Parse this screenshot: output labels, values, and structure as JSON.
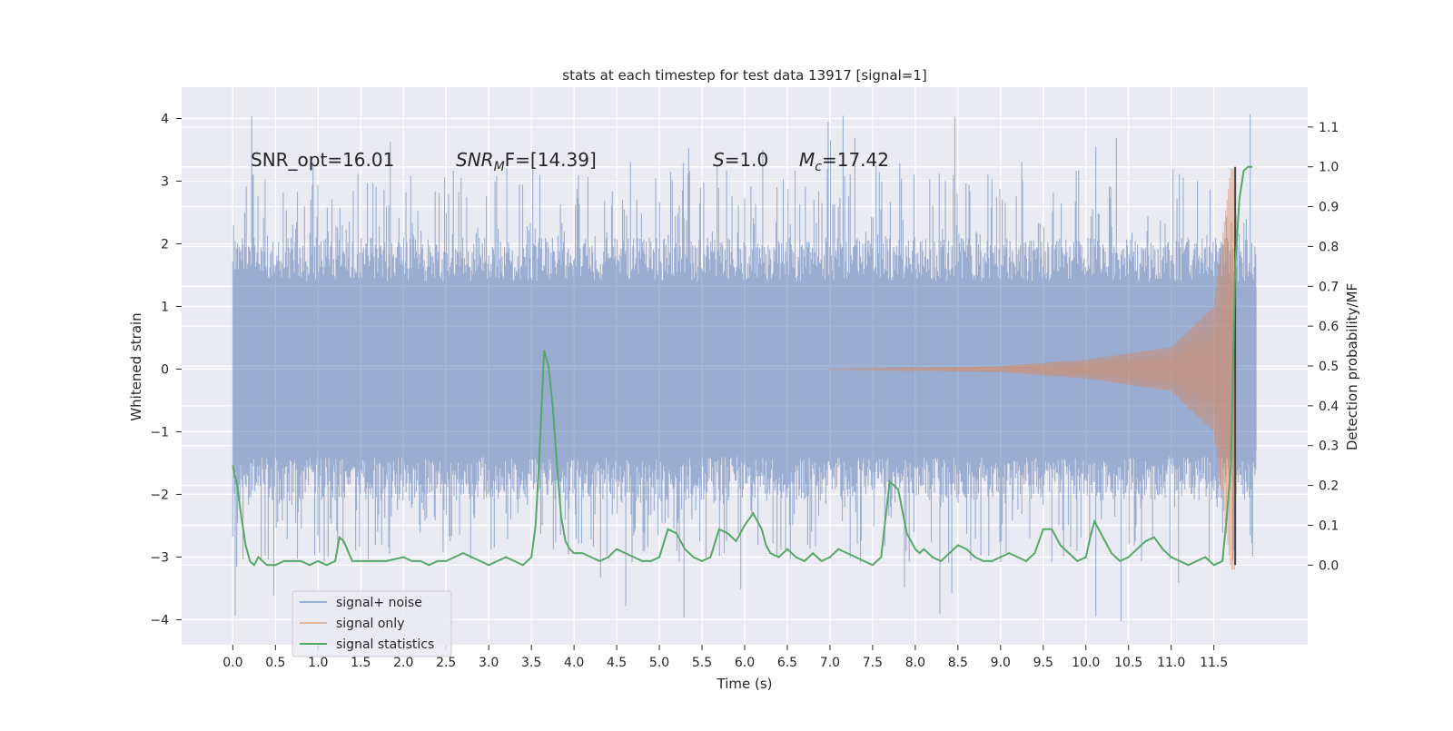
{
  "chart_data": {
    "type": "line",
    "title": "stats at each timestep for test data 13917 [signal=1]",
    "xlabel": "Time (s)",
    "ylabel": "Whitened strain",
    "ylabel_right": "Detection probability/MF",
    "xlim": [
      -0.6,
      12.6
    ],
    "ylim": [
      -4.4,
      4.5
    ],
    "ylim_right": [
      -0.2,
      1.2
    ],
    "x_ticks": [
      0.0,
      0.5,
      1.0,
      1.5,
      2.0,
      2.5,
      3.0,
      3.5,
      4.0,
      4.5,
      5.0,
      5.5,
      6.0,
      6.5,
      7.0,
      7.5,
      8.0,
      8.5,
      9.0,
      9.5,
      10.0,
      10.5,
      11.0,
      11.5
    ],
    "x_tick_labels": [
      "0.0",
      "0.5",
      "1.0",
      "1.5",
      "2.0",
      "2.5",
      "3.0",
      "3.5",
      "4.0",
      "4.5",
      "5.0",
      "5.5",
      "6.0",
      "6.5",
      "7.0",
      "7.5",
      "8.0",
      "8.5",
      "9.0",
      "9.5",
      "10.0",
      "10.5",
      "11.0",
      "11.5"
    ],
    "y_ticks": [
      -4,
      -3,
      -2,
      -1,
      0,
      1,
      2,
      3,
      4
    ],
    "y_tick_labels": [
      "−4",
      "−3",
      "−2",
      "−1",
      "0",
      "1",
      "2",
      "3",
      "4"
    ],
    "y_right_ticks": [
      0.0,
      0.1,
      0.2,
      0.3,
      0.4,
      0.5,
      0.6,
      0.7,
      0.8,
      0.9,
      1.0,
      1.1
    ],
    "y_right_tick_labels": [
      "0.0",
      "0.1",
      "0.2",
      "0.3",
      "0.4",
      "0.5",
      "0.6",
      "0.7",
      "0.8",
      "0.9",
      "1.0",
      "1.1"
    ],
    "grid": true,
    "legend_position": "lower-left",
    "annotations": [
      {
        "label": "SNR_opt=16.01",
        "x": 0.2,
        "y": 3.3
      },
      {
        "label_main": "SNR",
        "label_sub": "M",
        "label_rest": "F=[14.39]",
        "x": 2.6,
        "y": 3.3
      },
      {
        "label_main": "S",
        "label_rest": "=1.0",
        "x": 5.6,
        "y": 3.3
      },
      {
        "label_main": "M",
        "label_sub": "c",
        "label_rest": "=17.42",
        "x": 6.6,
        "y": 3.3
      }
    ],
    "marker_line_x": 11.75,
    "series": [
      {
        "name": "signal+ noise",
        "color": "#4c72b0",
        "axis": "left",
        "x_range": [
          0.0,
          12.0
        ],
        "envelope": {
          "dense_abs": 1.3,
          "spike_abs_max": 4.1
        }
      },
      {
        "name": "signal only",
        "color": "#dd8452",
        "axis": "left",
        "x_range": [
          7.0,
          11.75
        ],
        "amplitude": [
          [
            7.0,
            0.0
          ],
          [
            8.0,
            0.02
          ],
          [
            9.0,
            0.05
          ],
          [
            10.0,
            0.15
          ],
          [
            11.0,
            0.35
          ],
          [
            11.5,
            1.0
          ],
          [
            11.7,
            3.2
          ]
        ]
      },
      {
        "name": "signal statistics",
        "color": "#55a868",
        "axis": "right",
        "x": [
          0.0,
          0.05,
          0.1,
          0.15,
          0.2,
          0.25,
          0.3,
          0.4,
          0.5,
          0.6,
          0.7,
          0.8,
          0.9,
          1.0,
          1.1,
          1.2,
          1.25,
          1.3,
          1.4,
          1.5,
          1.6,
          1.8,
          2.0,
          2.1,
          2.2,
          2.3,
          2.4,
          2.5,
          2.6,
          2.7,
          2.8,
          2.9,
          3.0,
          3.1,
          3.2,
          3.3,
          3.4,
          3.5,
          3.55,
          3.6,
          3.65,
          3.7,
          3.75,
          3.8,
          3.85,
          3.9,
          3.95,
          4.0,
          4.05,
          4.1,
          4.2,
          4.3,
          4.4,
          4.5,
          4.6,
          4.7,
          4.8,
          4.9,
          5.0,
          5.1,
          5.2,
          5.3,
          5.4,
          5.5,
          5.6,
          5.7,
          5.8,
          5.9,
          6.0,
          6.1,
          6.2,
          6.25,
          6.3,
          6.4,
          6.5,
          6.6,
          6.7,
          6.8,
          6.9,
          7.0,
          7.1,
          7.2,
          7.3,
          7.4,
          7.5,
          7.6,
          7.7,
          7.8,
          7.9,
          8.0,
          8.05,
          8.1,
          8.2,
          8.3,
          8.4,
          8.5,
          8.6,
          8.7,
          8.8,
          8.9,
          9.0,
          9.1,
          9.2,
          9.3,
          9.4,
          9.5,
          9.6,
          9.7,
          9.8,
          9.9,
          10.0,
          10.05,
          10.1,
          10.2,
          10.3,
          10.35,
          10.4,
          10.5,
          10.6,
          10.7,
          10.8,
          10.9,
          11.0,
          11.1,
          11.2,
          11.3,
          11.4,
          11.5,
          11.6,
          11.65,
          11.7,
          11.72,
          11.75,
          11.8,
          11.85,
          11.9,
          11.95
        ],
        "values": [
          0.25,
          0.2,
          0.12,
          0.05,
          0.01,
          0.0,
          0.02,
          0.0,
          0.0,
          0.01,
          0.01,
          0.01,
          0.0,
          0.01,
          0.0,
          0.01,
          0.07,
          0.06,
          0.01,
          0.01,
          0.01,
          0.01,
          0.02,
          0.01,
          0.01,
          0.0,
          0.01,
          0.01,
          0.02,
          0.03,
          0.02,
          0.01,
          0.0,
          0.01,
          0.02,
          0.01,
          0.0,
          0.02,
          0.1,
          0.3,
          0.54,
          0.5,
          0.4,
          0.25,
          0.12,
          0.06,
          0.04,
          0.03,
          0.03,
          0.03,
          0.02,
          0.01,
          0.02,
          0.04,
          0.03,
          0.02,
          0.01,
          0.01,
          0.02,
          0.09,
          0.08,
          0.04,
          0.02,
          0.01,
          0.02,
          0.09,
          0.08,
          0.06,
          0.1,
          0.13,
          0.09,
          0.05,
          0.03,
          0.02,
          0.04,
          0.02,
          0.01,
          0.03,
          0.01,
          0.02,
          0.04,
          0.03,
          0.02,
          0.01,
          0.0,
          0.02,
          0.21,
          0.19,
          0.08,
          0.04,
          0.03,
          0.04,
          0.02,
          0.01,
          0.03,
          0.05,
          0.04,
          0.02,
          0.01,
          0.01,
          0.02,
          0.03,
          0.02,
          0.01,
          0.03,
          0.09,
          0.09,
          0.05,
          0.03,
          0.01,
          0.02,
          0.07,
          0.11,
          0.07,
          0.03,
          0.02,
          0.01,
          0.02,
          0.04,
          0.06,
          0.07,
          0.04,
          0.02,
          0.01,
          0.0,
          0.01,
          0.02,
          0.0,
          0.01,
          0.12,
          0.25,
          0.45,
          0.75,
          0.92,
          0.99,
          1.0,
          1.0
        ]
      }
    ]
  }
}
